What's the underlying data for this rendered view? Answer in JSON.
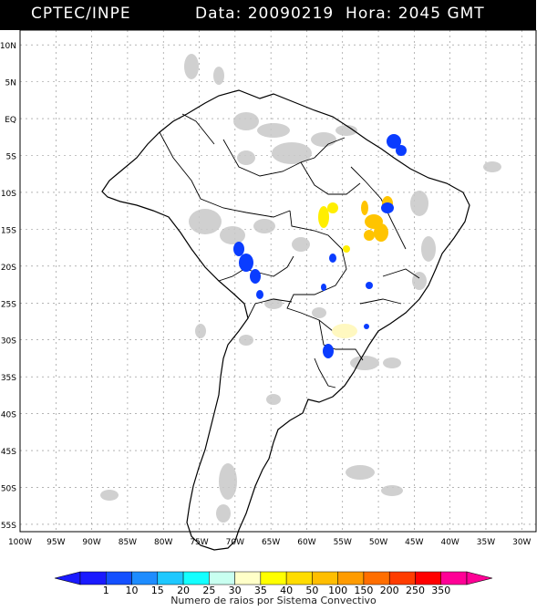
{
  "header": {
    "source": "CPTEC/INPE",
    "date_time": "Data: 20090219  Hora: 2045 GMT"
  },
  "map": {
    "lat_labels": [
      "10N",
      "5N",
      "EQ",
      "5S",
      "10S",
      "15S",
      "20S",
      "25S",
      "30S",
      "35S",
      "40S",
      "45S",
      "50S",
      "55S"
    ],
    "lat_values": [
      10,
      5,
      0,
      -5,
      -10,
      -15,
      -20,
      -25,
      -30,
      -35,
      -40,
      -45,
      -50,
      -55
    ],
    "lon_labels": [
      "100W",
      "95W",
      "90W",
      "85W",
      "80W",
      "75W",
      "70W",
      "65W",
      "60W",
      "55W",
      "50W",
      "45W",
      "40W",
      "35W",
      "30W"
    ],
    "lon_values": [
      -100,
      -95,
      -90,
      -85,
      -80,
      -75,
      -70,
      -65,
      -60,
      -55,
      -50,
      -45,
      -40,
      -35,
      -30
    ],
    "lat_range": [
      -56,
      12
    ],
    "lon_range": [
      -100,
      -28
    ],
    "grid": true,
    "cloud_color": "#c8c8c8",
    "lightning_regions": [
      {
        "area": "NE Brazil (Maranhão/Piauí)",
        "color": "#0a3cff"
      },
      {
        "area": "Bolivia / Chile border",
        "color": "#0a3cff"
      },
      {
        "area": "Central Brazil (Goiás/Bahia)",
        "color": "#ffc400"
      },
      {
        "area": "Central Brazil west (Mato Grosso)",
        "color": "#ffee00"
      },
      {
        "area": "Rio Grande do Sul",
        "color": "#fff8c0"
      },
      {
        "area": "Uruguay",
        "color": "#0a3cff"
      }
    ]
  },
  "legend": {
    "labels": [
      "1",
      "10",
      "15",
      "20",
      "25",
      "30",
      "35",
      "40",
      "50",
      "100",
      "150",
      "200",
      "250",
      "350"
    ],
    "colors": [
      "#1a1aff",
      "#1450ff",
      "#1e8cff",
      "#1ec8ff",
      "#14ffff",
      "#c8fff0",
      "#ffffc8",
      "#ffff00",
      "#ffdc00",
      "#ffbe00",
      "#ff9b00",
      "#ff6e00",
      "#ff3c00",
      "#ff0000",
      "#ff0096"
    ],
    "title": "Numero de raios por Sistema Convectivo"
  }
}
